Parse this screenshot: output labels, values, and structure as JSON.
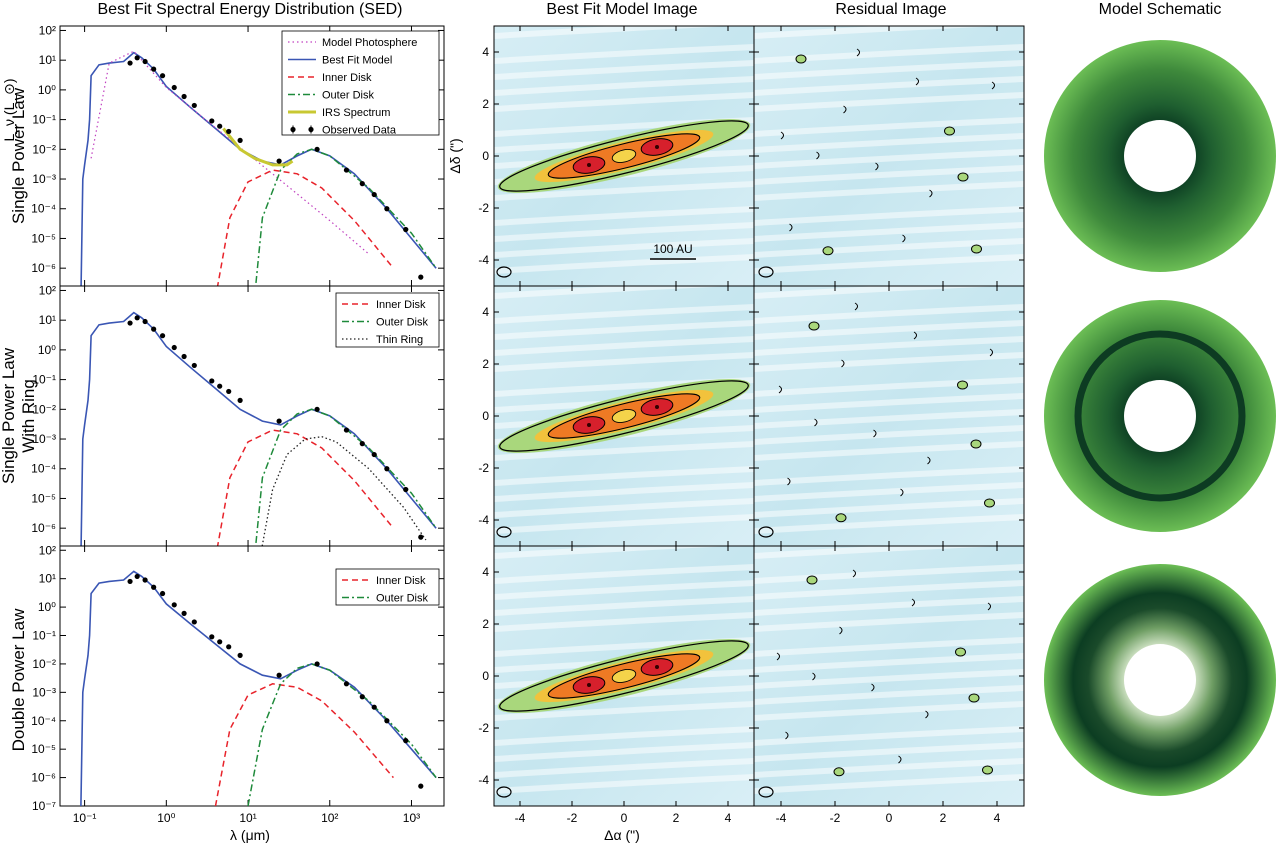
{
  "column_titles": {
    "sed": "Best Fit Spectral Energy Distribution (SED)",
    "model_image": "Best Fit Model Image",
    "residual": "Residual Image",
    "schematic": "Model Schematic"
  },
  "row_labels": [
    [
      "Single Power Law"
    ],
    [
      "Single Power Law",
      "With Ring"
    ],
    [
      "Double Power Law"
    ]
  ],
  "sed_axes": {
    "xlabel": "λ (μm)",
    "ylabel": "L_ν (L_⊙)",
    "x_ticks": [
      "10⁻¹",
      "10⁰",
      "10¹",
      "10²",
      "10³"
    ],
    "y_ticks_top": [
      "10²",
      "10¹",
      "10⁰",
      "10⁻¹",
      "10⁻²",
      "10⁻³",
      "10⁻⁴",
      "10⁻⁵",
      "10⁻⁶"
    ],
    "y_ticks_bottom": [
      "10²",
      "10¹",
      "10⁰",
      "10⁻¹",
      "10⁻²",
      "10⁻³",
      "10⁻⁴",
      "10⁻⁵",
      "10⁻⁶",
      "10⁻⁷"
    ],
    "xlim": [
      0.05,
      2500
    ],
    "ylim": [
      1e-07,
      200
    ]
  },
  "legends": [
    [
      "Model Photosphere",
      "Best Fit Model",
      "Inner Disk",
      "Outer Disk",
      "IRS Spectrum",
      "Observed Data"
    ],
    [
      "Inner Disk",
      "Outer Disk",
      "Thin Ring"
    ],
    [
      "Inner Disk",
      "Outer Disk"
    ]
  ],
  "image_axes": {
    "xlabel": "Δα (\")",
    "ylabel": "Δδ (\")",
    "x_ticks": [
      "-4",
      "-2",
      "0",
      "2",
      "4"
    ],
    "y_ticks": [
      "4",
      "2",
      "0",
      "-2",
      "-4"
    ],
    "scale_bar": "100 AU"
  },
  "colors": {
    "best_fit": "#3a56b4",
    "photosphere": "#c040c0",
    "inner_disk": "#e8232b",
    "outer_disk": "#1e8a3a",
    "thin_ring": "#222222",
    "irs": "#c8c832",
    "observed": "#000000",
    "image_bg": "#cfe9f1",
    "ring_dark": "#0d3b22",
    "disk_light": "#6cbe55"
  },
  "chart_data": [
    {
      "type": "line",
      "title": "Best Fit Spectral Energy Distribution (SED)",
      "row": "Single Power Law",
      "xlabel": "λ (μm)",
      "ylabel": "L_ν (L_⊙)",
      "xlim": [
        0.05,
        2500
      ],
      "ylim": [
        2e-07,
        200
      ],
      "x_scale": "log",
      "y_scale": "log",
      "series": [
        {
          "name": "Best Fit Model",
          "x": [
            0.09,
            0.095,
            0.1,
            0.11,
            0.115,
            0.12,
            0.15,
            0.2,
            0.3,
            0.4,
            0.5,
            0.7,
            1,
            2,
            4,
            8,
            15,
            25,
            40,
            60,
            100,
            200,
            500,
            1000,
            2000
          ],
          "y": [
            1e-07,
            0.001,
            0.003,
            0.02,
            0.1,
            3,
            7,
            8,
            9,
            18,
            12,
            5,
            1.3,
            0.25,
            0.05,
            0.01,
            0.004,
            0.003,
            0.006,
            0.01,
            0.006,
            0.0015,
            0.0001,
            1e-05,
            1e-06
          ]
        },
        {
          "name": "Model Photosphere",
          "x": [
            0.12,
            0.2,
            0.4,
            1,
            3,
            10,
            30,
            100,
            300
          ],
          "y": [
            0.005,
            8,
            20,
            1.2,
            0.1,
            0.007,
            0.0006,
            4e-05,
            3e-06
          ]
        },
        {
          "name": "Inner Disk",
          "x": [
            4,
            6,
            10,
            20,
            40,
            80,
            200,
            600
          ],
          "y": [
            1e-07,
            5e-05,
            0.0008,
            0.002,
            0.0015,
            0.0005,
            4e-05,
            1e-06
          ]
        },
        {
          "name": "Outer Disk",
          "x": [
            12,
            15,
            25,
            40,
            60,
            100,
            300,
            1000,
            2000
          ],
          "y": [
            1e-07,
            5e-05,
            0.002,
            0.007,
            0.01,
            0.006,
            0.0005,
            1.5e-05,
            1e-06
          ]
        },
        {
          "name": "IRS Spectrum",
          "x": [
            5,
            8,
            12,
            20,
            30,
            35
          ],
          "y": [
            0.05,
            0.01,
            0.005,
            0.003,
            0.003,
            0.004
          ]
        },
        {
          "name": "Observed Data",
          "x": [
            0.36,
            0.44,
            0.55,
            0.7,
            0.9,
            1.25,
            1.65,
            2.2,
            3.6,
            4.5,
            5.8,
            8,
            24,
            70,
            160,
            250,
            350,
            500,
            850,
            1300
          ],
          "y": [
            8,
            12,
            9,
            5,
            3,
            1.2,
            0.6,
            0.3,
            0.09,
            0.06,
            0.04,
            0.02,
            0.004,
            0.01,
            0.002,
            0.0007,
            0.0003,
            0.0001,
            2e-05,
            5e-07
          ]
        }
      ]
    },
    {
      "type": "line",
      "row": "Single Power Law With Ring",
      "xlim": [
        0.05,
        2500
      ],
      "ylim": [
        2e-07,
        200
      ],
      "x_scale": "log",
      "y_scale": "log",
      "series": [
        {
          "name": "Best Fit Model",
          "x": [
            0.09,
            0.095,
            0.1,
            0.11,
            0.115,
            0.12,
            0.15,
            0.2,
            0.3,
            0.4,
            0.5,
            0.7,
            1,
            2,
            4,
            8,
            15,
            25,
            40,
            60,
            100,
            200,
            500,
            1000,
            2000
          ],
          "y": [
            1e-07,
            0.001,
            0.003,
            0.02,
            0.1,
            3,
            7,
            8,
            9,
            18,
            12,
            5,
            1.3,
            0.25,
            0.05,
            0.01,
            0.004,
            0.003,
            0.006,
            0.01,
            0.006,
            0.0015,
            0.0001,
            1e-05,
            1e-06
          ]
        },
        {
          "name": "Inner Disk",
          "x": [
            4,
            6,
            10,
            20,
            40,
            80,
            200,
            600
          ],
          "y": [
            1e-07,
            5e-05,
            0.0008,
            0.002,
            0.0015,
            0.0005,
            4e-05,
            1e-06
          ]
        },
        {
          "name": "Outer Disk",
          "x": [
            12,
            15,
            25,
            40,
            60,
            100,
            300,
            1000,
            2000
          ],
          "y": [
            1e-07,
            5e-05,
            0.002,
            0.007,
            0.01,
            0.006,
            0.0005,
            1.5e-05,
            1e-06
          ]
        },
        {
          "name": "Thin Ring",
          "x": [
            14,
            20,
            30,
            50,
            80,
            120,
            300,
            800,
            1500
          ],
          "y": [
            1e-07,
            2e-05,
            0.0003,
            0.001,
            0.0012,
            0.0008,
            0.0001,
            5e-06,
            4e-07
          ]
        }
      ]
    },
    {
      "type": "line",
      "row": "Double Power Law",
      "xlabel": "λ (μm)",
      "xlim": [
        0.05,
        2500
      ],
      "ylim": [
        1e-07,
        200
      ],
      "x_scale": "log",
      "y_scale": "log",
      "series": [
        {
          "name": "Best Fit Model",
          "x": [
            0.09,
            0.095,
            0.1,
            0.11,
            0.115,
            0.12,
            0.15,
            0.2,
            0.3,
            0.4,
            0.5,
            0.7,
            1,
            2,
            4,
            8,
            15,
            25,
            40,
            60,
            100,
            200,
            500,
            1000,
            2000
          ],
          "y": [
            1e-07,
            0.001,
            0.003,
            0.02,
            0.1,
            3,
            7,
            8,
            9,
            18,
            12,
            5,
            1.3,
            0.25,
            0.05,
            0.01,
            0.004,
            0.003,
            0.006,
            0.01,
            0.006,
            0.0015,
            0.0001,
            1e-05,
            1e-06
          ]
        },
        {
          "name": "Inner Disk",
          "x": [
            4,
            6,
            10,
            20,
            40,
            80,
            200,
            600
          ],
          "y": [
            1e-07,
            5e-05,
            0.0008,
            0.002,
            0.0015,
            0.0005,
            4e-05,
            1e-06
          ]
        },
        {
          "name": "Outer Disk",
          "x": [
            10,
            15,
            25,
            40,
            60,
            100,
            300,
            1000,
            2000
          ],
          "y": [
            1e-07,
            5e-05,
            0.002,
            0.007,
            0.01,
            0.006,
            0.0005,
            1.5e-05,
            1e-06
          ]
        }
      ]
    }
  ]
}
